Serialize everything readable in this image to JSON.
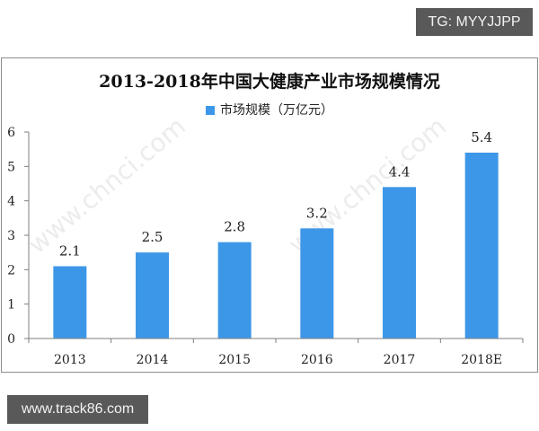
{
  "badges": {
    "tg": "TG: MYYJJPP",
    "site": "www.track86.com"
  },
  "watermark": "www.chnci.com",
  "colors": {
    "bar": "#3d97e8",
    "axis": "#7f7f7f",
    "frame": "#8c8c8c"
  },
  "chart_data": {
    "type": "bar",
    "title": "2013-2018年中国大健康产业市场规模情况",
    "categories": [
      "2013",
      "2014",
      "2015",
      "2016",
      "2017",
      "2018E"
    ],
    "series": [
      {
        "name": "市场规模（万亿元）",
        "values": [
          2.1,
          2.5,
          2.8,
          3.2,
          4.4,
          5.4
        ]
      }
    ],
    "data_labels": [
      "2.1",
      "2.5",
      "2.8",
      "3.2",
      "4.4",
      "5.4"
    ],
    "xlabel": "",
    "ylabel": "",
    "ylim": [
      0,
      6
    ],
    "yticks": [
      "0",
      "1",
      "2",
      "3",
      "4",
      "5",
      "6"
    ],
    "legend_position": "top",
    "grid": false
  }
}
